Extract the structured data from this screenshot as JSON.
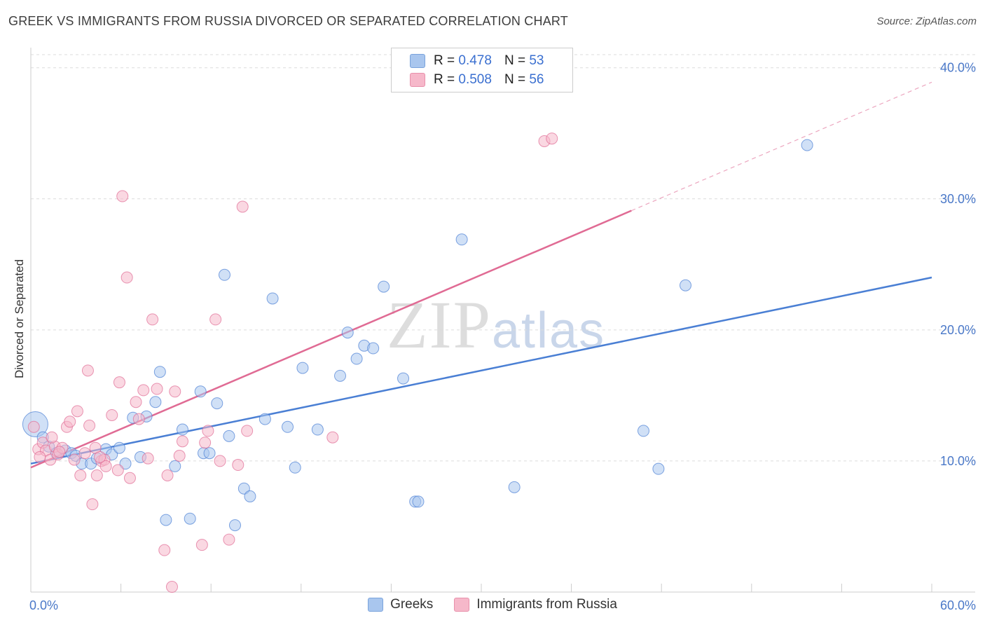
{
  "header": {
    "title": "GREEK VS IMMIGRANTS FROM RUSSIA DIVORCED OR SEPARATED CORRELATION CHART",
    "source": "Source: ZipAtlas.com"
  },
  "watermark": {
    "zip": "ZIP",
    "atlas": "atlas"
  },
  "legend": {
    "rows": [
      {
        "r_label": "R =",
        "r_value": "0.478",
        "n_label": "N =",
        "n_value": "53",
        "color": "#a9c6ee"
      },
      {
        "r_label": "R =",
        "r_value": "0.508",
        "n_label": "N =",
        "n_value": "56",
        "color": "#f6b8ca"
      }
    ]
  },
  "bottom_legend": [
    {
      "label": "Greeks",
      "color": "#a9c6ee"
    },
    {
      "label": "Immigrants from Russia",
      "color": "#f6b8ca"
    }
  ],
  "chart_data": {
    "type": "scatter",
    "title": "GREEK VS IMMIGRANTS FROM RUSSIA DIVORCED OR SEPARATED CORRELATION CHART",
    "xlabel": "",
    "ylabel": "Divorced or Separated",
    "xlim": [
      0,
      60
    ],
    "ylim": [
      0,
      41
    ],
    "x_tick_labels": [
      "0.0%",
      "60.0%"
    ],
    "y_ticks": [
      10,
      20,
      30,
      40
    ],
    "y_tick_labels": [
      "10.0%",
      "20.0%",
      "30.0%",
      "40.0%"
    ],
    "grid": true,
    "legend_position": "top-center",
    "series": [
      {
        "name": "Greeks",
        "color": "#4a7fd4",
        "fill": "#a9c6ee",
        "points": [
          [
            0.3,
            12.8
          ],
          [
            0.8,
            11.8
          ],
          [
            1.2,
            11.1
          ],
          [
            1.7,
            10.6
          ],
          [
            2.3,
            10.8
          ],
          [
            2.7,
            10.6
          ],
          [
            3.0,
            10.4
          ],
          [
            3.4,
            9.8
          ],
          [
            4.0,
            9.8
          ],
          [
            4.4,
            10.2
          ],
          [
            5.0,
            10.9
          ],
          [
            5.4,
            10.5
          ],
          [
            5.9,
            11.0
          ],
          [
            6.3,
            9.8
          ],
          [
            6.8,
            13.3
          ],
          [
            7.3,
            10.3
          ],
          [
            7.7,
            13.4
          ],
          [
            8.3,
            14.5
          ],
          [
            8.6,
            16.8
          ],
          [
            9.0,
            5.5
          ],
          [
            9.6,
            9.6
          ],
          [
            10.1,
            12.4
          ],
          [
            10.6,
            5.6
          ],
          [
            11.3,
            15.3
          ],
          [
            11.5,
            10.6
          ],
          [
            11.9,
            10.6
          ],
          [
            12.4,
            14.4
          ],
          [
            12.9,
            24.2
          ],
          [
            13.2,
            11.9
          ],
          [
            13.6,
            5.1
          ],
          [
            14.2,
            7.9
          ],
          [
            14.6,
            7.3
          ],
          [
            15.6,
            13.2
          ],
          [
            16.1,
            22.4
          ],
          [
            17.1,
            12.6
          ],
          [
            17.6,
            9.5
          ],
          [
            18.1,
            17.1
          ],
          [
            19.1,
            12.4
          ],
          [
            20.6,
            16.5
          ],
          [
            21.1,
            19.8
          ],
          [
            21.7,
            17.8
          ],
          [
            22.2,
            18.8
          ],
          [
            22.8,
            18.6
          ],
          [
            23.5,
            23.3
          ],
          [
            24.8,
            16.3
          ],
          [
            25.6,
            6.9
          ],
          [
            25.8,
            6.9
          ],
          [
            28.7,
            26.9
          ],
          [
            32.2,
            8.0
          ],
          [
            40.8,
            12.3
          ],
          [
            41.8,
            9.4
          ],
          [
            43.6,
            23.4
          ],
          [
            51.7,
            34.1
          ]
        ],
        "trend": {
          "x": [
            0,
            60
          ],
          "y": [
            9.8,
            24.0
          ],
          "solid_until": 60
        }
      },
      {
        "name": "Immigrants from Russia",
        "color": "#e06b94",
        "fill": "#f6b8ca",
        "points": [
          [
            0.2,
            12.6
          ],
          [
            0.5,
            10.9
          ],
          [
            0.8,
            11.4
          ],
          [
            1.0,
            10.8
          ],
          [
            1.3,
            10.1
          ],
          [
            1.6,
            11.1
          ],
          [
            1.8,
            10.5
          ],
          [
            2.1,
            11.0
          ],
          [
            2.4,
            12.6
          ],
          [
            2.6,
            13.0
          ],
          [
            2.9,
            10.1
          ],
          [
            3.1,
            13.8
          ],
          [
            3.3,
            8.9
          ],
          [
            3.6,
            10.6
          ],
          [
            3.8,
            16.9
          ],
          [
            3.9,
            12.7
          ],
          [
            4.1,
            6.7
          ],
          [
            4.3,
            11.0
          ],
          [
            4.4,
            8.9
          ],
          [
            4.7,
            10.0
          ],
          [
            4.9,
            10.1
          ],
          [
            5.0,
            9.6
          ],
          [
            5.4,
            13.5
          ],
          [
            5.8,
            9.3
          ],
          [
            5.9,
            16.0
          ],
          [
            6.1,
            30.2
          ],
          [
            6.4,
            24.0
          ],
          [
            6.6,
            8.7
          ],
          [
            7.0,
            14.5
          ],
          [
            7.2,
            13.2
          ],
          [
            7.5,
            15.4
          ],
          [
            8.1,
            20.8
          ],
          [
            8.4,
            15.5
          ],
          [
            8.9,
            3.2
          ],
          [
            9.1,
            8.9
          ],
          [
            9.4,
            0.4
          ],
          [
            9.6,
            15.3
          ],
          [
            10.1,
            11.5
          ],
          [
            11.4,
            3.6
          ],
          [
            11.6,
            11.4
          ],
          [
            11.8,
            12.3
          ],
          [
            12.3,
            20.8
          ],
          [
            12.6,
            10.0
          ],
          [
            13.2,
            4.0
          ],
          [
            13.8,
            9.7
          ],
          [
            14.1,
            29.4
          ],
          [
            14.4,
            12.3
          ],
          [
            20.1,
            11.8
          ],
          [
            34.2,
            34.4
          ],
          [
            34.7,
            34.6
          ],
          [
            1.9,
            10.7
          ],
          [
            4.6,
            10.3
          ],
          [
            7.8,
            10.2
          ],
          [
            9.9,
            10.4
          ],
          [
            0.6,
            10.3
          ],
          [
            1.4,
            11.8
          ]
        ],
        "trend": {
          "x": [
            0,
            60
          ],
          "y": [
            9.5,
            38.9
          ],
          "solid_until": 40
        }
      }
    ]
  }
}
